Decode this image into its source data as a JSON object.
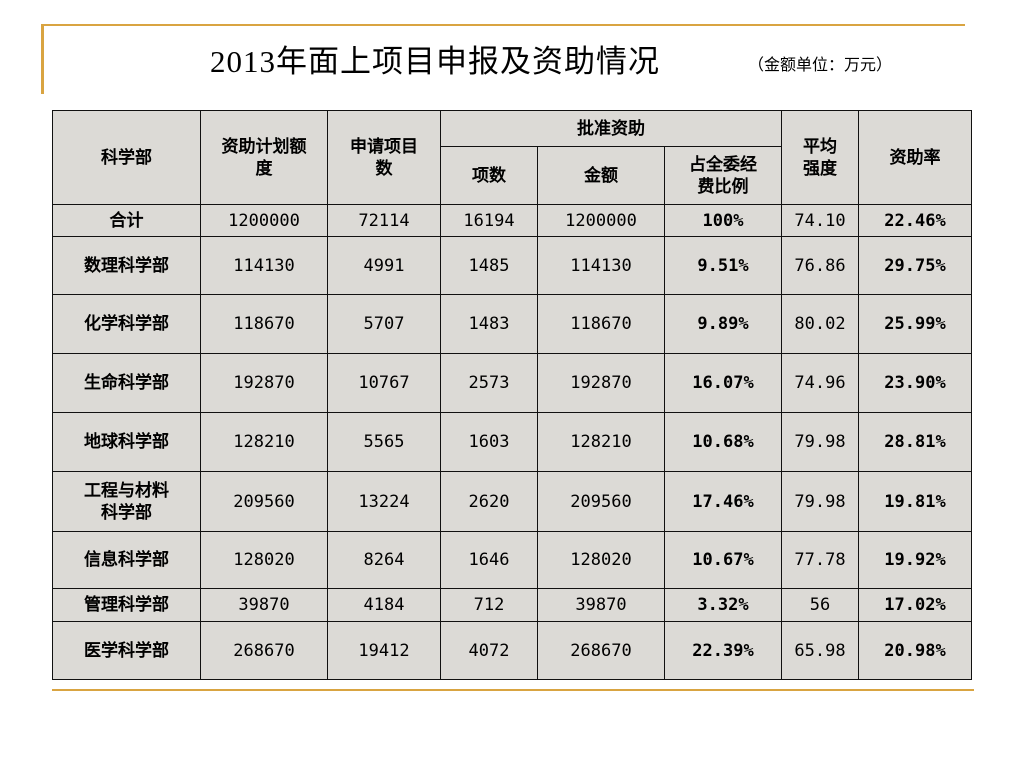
{
  "slide": {
    "title": "2013年面上项目申报及资助情况",
    "unit": "（金额单位：万元）"
  },
  "table": {
    "headers": {
      "dept": "科学部",
      "budget": "资助计划额度",
      "applications": "申请项目数",
      "approved_group": "批准资助",
      "approved_count": "项数",
      "approved_amount": "金额",
      "share": "占全委经费比例",
      "avg": "平均强度",
      "rate": "资助率"
    },
    "rows": [
      {
        "dept": "合计",
        "budget": "1200000",
        "applications": "72114",
        "count": "16194",
        "amount": "1200000",
        "share": "100%",
        "avg": "74.10",
        "rate": "22.46%"
      },
      {
        "dept": "数理科学部",
        "budget": "114130",
        "applications": "4991",
        "count": "1485",
        "amount": "114130",
        "share": "9.51%",
        "avg": "76.86",
        "rate": "29.75%"
      },
      {
        "dept": "化学科学部",
        "budget": "118670",
        "applications": "5707",
        "count": "1483",
        "amount": "118670",
        "share": "9.89%",
        "avg": "80.02",
        "rate": "25.99%"
      },
      {
        "dept": "生命科学部",
        "budget": "192870",
        "applications": "10767",
        "count": "2573",
        "amount": "192870",
        "share": "16.07%",
        "avg": "74.96",
        "rate": "23.90%"
      },
      {
        "dept": "地球科学部",
        "budget": "128210",
        "applications": "5565",
        "count": "1603",
        "amount": "128210",
        "share": "10.68%",
        "avg": "79.98",
        "rate": "28.81%"
      },
      {
        "dept": "工程与材料科学部",
        "budget": "209560",
        "applications": "13224",
        "count": "2620",
        "amount": "209560",
        "share": "17.46%",
        "avg": "79.98",
        "rate": "19.81%"
      },
      {
        "dept": "信息科学部",
        "budget": "128020",
        "applications": "8264",
        "count": "1646",
        "amount": "128020",
        "share": "10.67%",
        "avg": "77.78",
        "rate": "19.92%"
      },
      {
        "dept": "管理科学部",
        "budget": "39870",
        "applications": "4184",
        "count": "712",
        "amount": "39870",
        "share": "3.32%",
        "avg": "56",
        "rate": "17.02%"
      },
      {
        "dept": "医学科学部",
        "budget": "268670",
        "applications": "19412",
        "count": "4072",
        "amount": "268670",
        "share": "22.39%",
        "avg": "65.98",
        "rate": "20.98%"
      }
    ]
  },
  "colors": {
    "accent": "#d9a441",
    "table_bg": "#dcdad6"
  }
}
